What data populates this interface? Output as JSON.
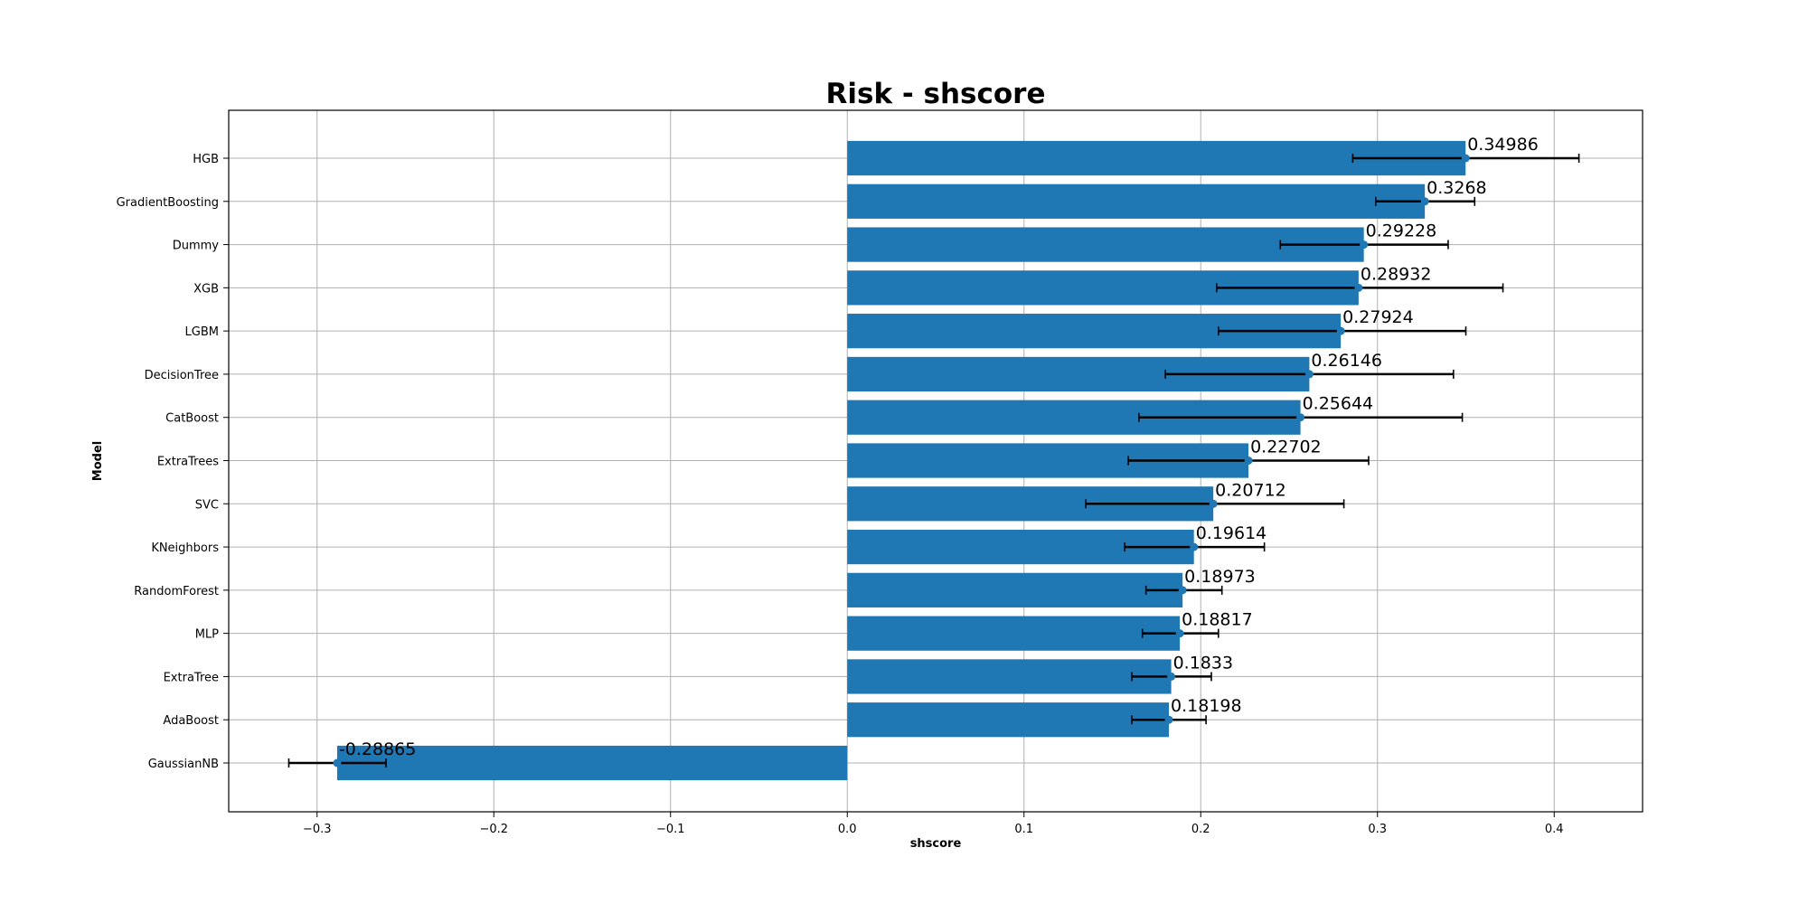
{
  "chart_data": {
    "type": "bar",
    "orientation": "horizontal",
    "title": "Risk - shscore",
    "xlabel": "shscore",
    "ylabel": "Model",
    "xlim": [
      -0.35,
      0.45
    ],
    "xticks": [
      -0.3,
      -0.2,
      -0.1,
      0.0,
      0.1,
      0.2,
      0.3,
      0.4
    ],
    "xtick_labels": [
      "−0.3",
      "−0.2",
      "−0.1",
      "0.0",
      "0.1",
      "0.2",
      "0.3",
      "0.4"
    ],
    "grid": true,
    "bar_color": "#1f77b4",
    "errorbar_color": "#000000",
    "categories": [
      "HGB",
      "GradientBoosting",
      "Dummy",
      "XGB",
      "LGBM",
      "DecisionTree",
      "CatBoost",
      "ExtraTrees",
      "SVC",
      "KNeighbors",
      "RandomForest",
      "MLP",
      "ExtraTree",
      "AdaBoost",
      "GaussianNB"
    ],
    "values": [
      0.34986,
      0.3268,
      0.29228,
      0.28932,
      0.27924,
      0.26146,
      0.25644,
      0.22702,
      0.20712,
      0.19614,
      0.18973,
      0.18817,
      0.1833,
      0.18198,
      -0.28865
    ],
    "value_labels": [
      "0.34986",
      "0.3268",
      "0.29228",
      "0.28932",
      "0.27924",
      "0.26146",
      "0.25644",
      "0.22702",
      "0.20712",
      "0.19614",
      "0.18973",
      "0.18817",
      "0.1833",
      "0.18198",
      "-0.28865"
    ],
    "error_low": [
      0.286,
      0.299,
      0.245,
      0.209,
      0.21,
      0.18,
      0.165,
      0.159,
      0.135,
      0.157,
      0.169,
      0.167,
      0.161,
      0.161,
      -0.316
    ],
    "error_high": [
      0.414,
      0.355,
      0.34,
      0.371,
      0.35,
      0.343,
      0.348,
      0.295,
      0.281,
      0.236,
      0.212,
      0.21,
      0.206,
      0.203,
      -0.261
    ]
  }
}
